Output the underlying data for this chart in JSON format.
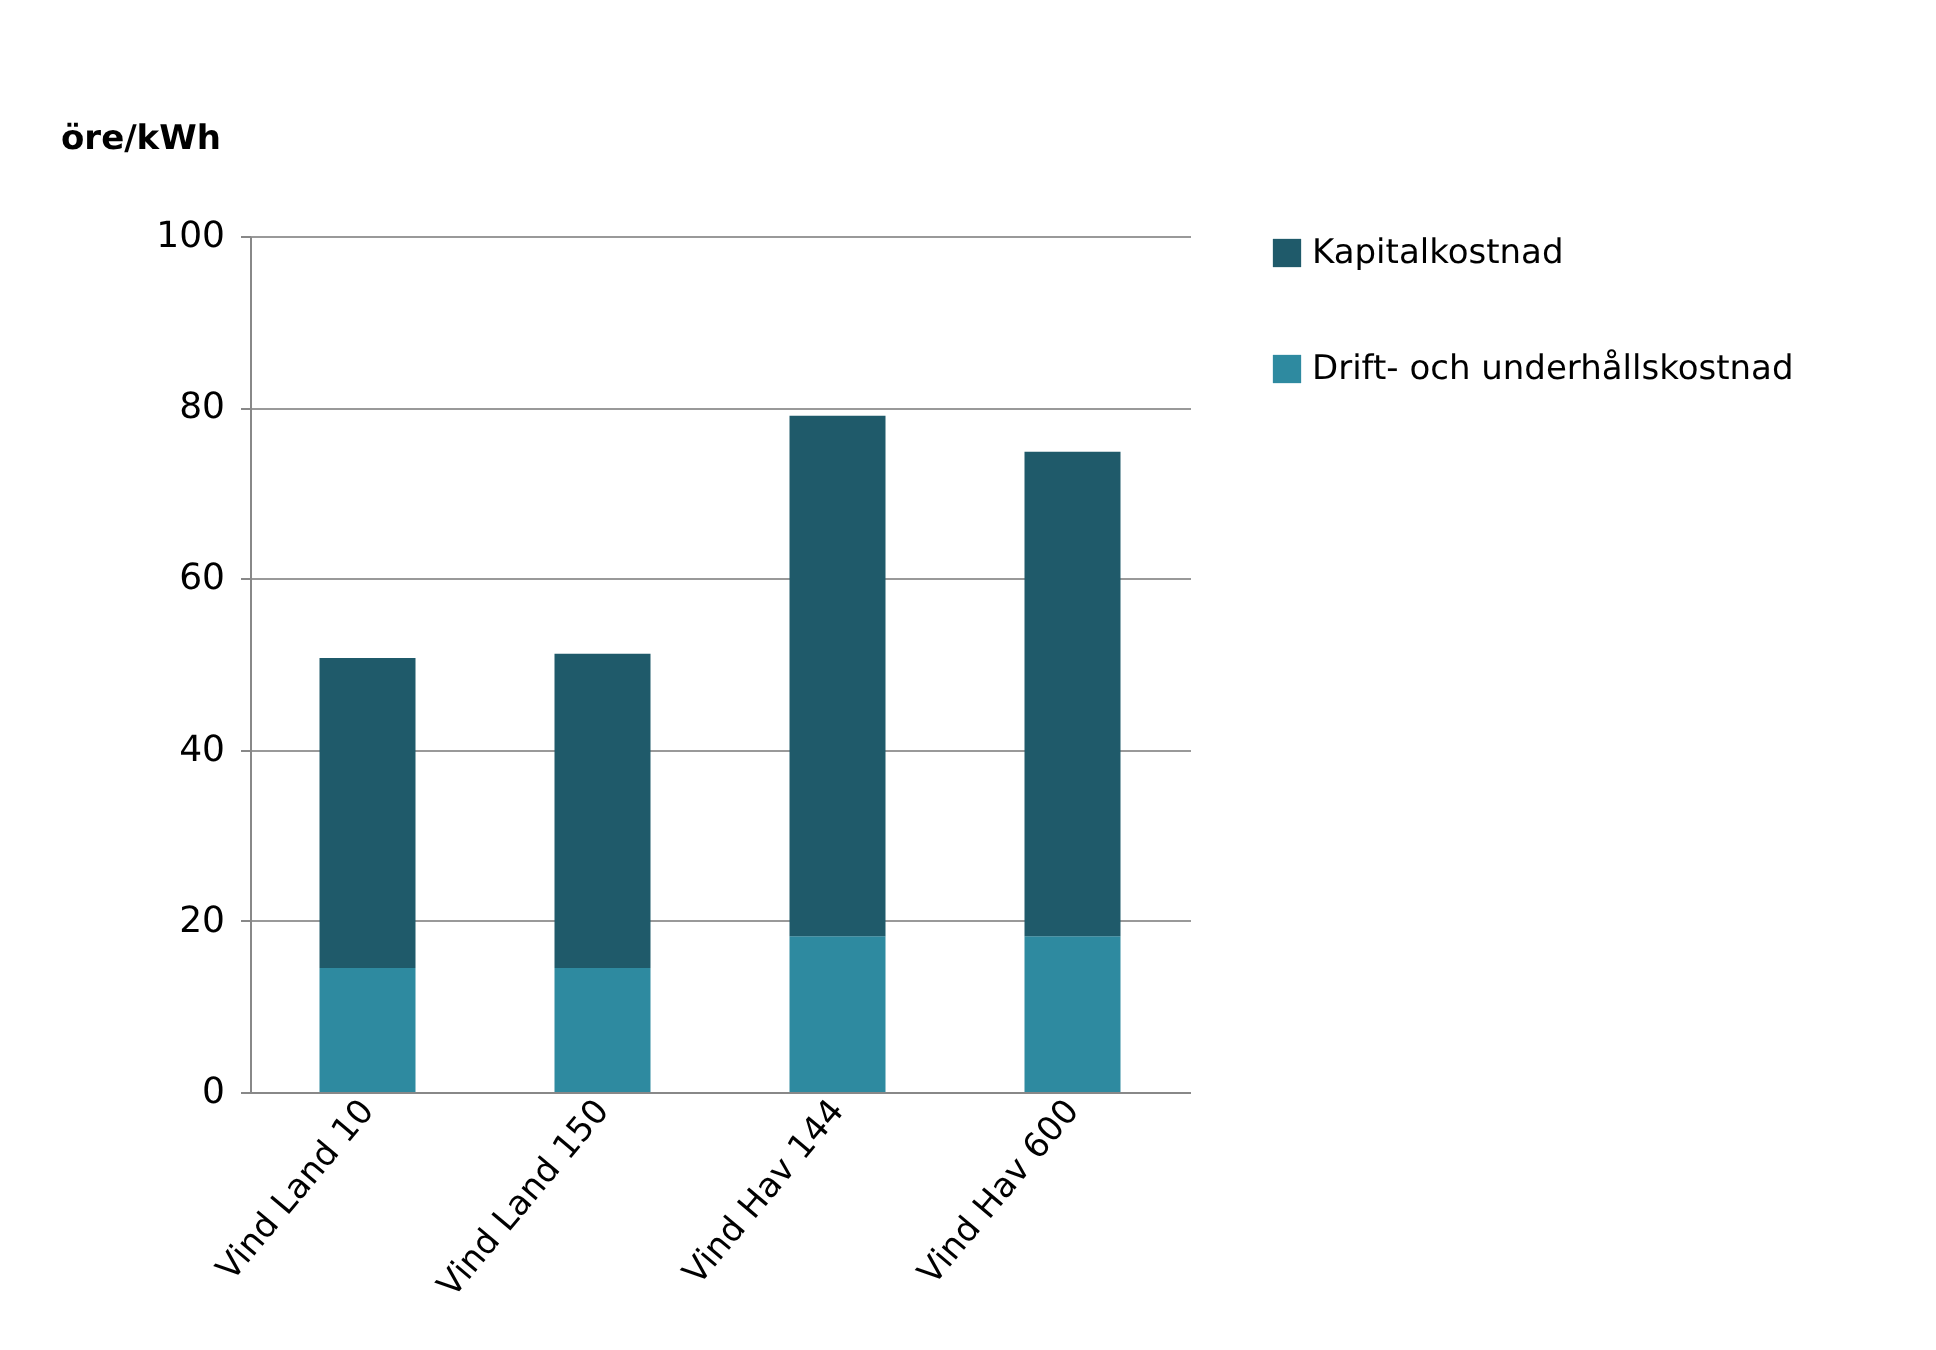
{
  "chart_data": {
    "type": "bar",
    "stacked": true,
    "ylabel": "öre/kWh",
    "categories": [
      "Vind Land 10",
      "Vind Land 150",
      "Vind Hav 144",
      "Vind Hav 600"
    ],
    "series": [
      {
        "name": "Drift- och underhållskostnad",
        "color": "#2e8aa0",
        "values": [
          14.5,
          14.5,
          18.2,
          18.2
        ]
      },
      {
        "name": "Kapitalkostnad",
        "color": "#1f5a6a",
        "values": [
          36.2,
          36.7,
          60.8,
          56.6
        ]
      }
    ],
    "ylim": [
      0,
      100
    ],
    "yticks": [
      0,
      20,
      40,
      60,
      80,
      100
    ],
    "grid": "y",
    "legend": "right"
  }
}
